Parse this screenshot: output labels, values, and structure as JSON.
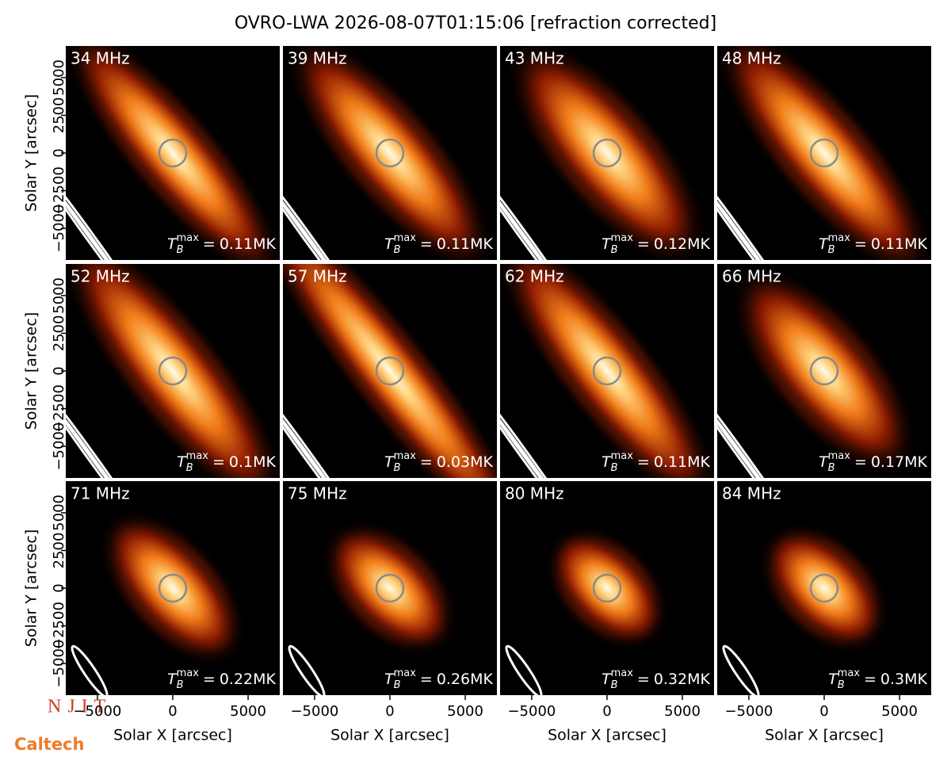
{
  "chart_data": {
    "type": "image-grid",
    "title": "OVRO-LWA 2026-08-07T01:15:06 [refraction corrected]",
    "xlabel": "Solar X [arcsec]",
    "ylabel": "Solar Y [arcsec]",
    "xlim": [
      -7100,
      7100
    ],
    "ylim": [
      -7100,
      7100
    ],
    "xticks": [
      {
        "value": -5000,
        "label": "−5000"
      },
      0,
      5000
    ],
    "yticks": [
      {
        "value": -5000,
        "label": "−5000"
      },
      {
        "value": -2500,
        "label": "−2500"
      },
      0,
      2500,
      5000
    ],
    "tb_symbol": {
      "base": "T",
      "sub": "B",
      "sup": "max",
      "eq": "="
    },
    "panels": [
      {
        "label": "34 MHz",
        "value": 0.11,
        "value_label": "0.11MK"
      },
      {
        "label": "39 MHz",
        "value": 0.11,
        "value_label": "0.11MK"
      },
      {
        "label": "43 MHz",
        "value": 0.12,
        "value_label": "0.12MK"
      },
      {
        "label": "48 MHz",
        "value": 0.11,
        "value_label": "0.11MK"
      },
      {
        "label": "52 MHz",
        "value": 0.1,
        "value_label": "0.1MK"
      },
      {
        "label": "57 MHz",
        "value": 0.03,
        "value_label": "0.03MK"
      },
      {
        "label": "62 MHz",
        "value": 0.11,
        "value_label": "0.11MK"
      },
      {
        "label": "66 MHz",
        "value": 0.17,
        "value_label": "0.17MK"
      },
      {
        "label": "71 MHz",
        "value": 0.22,
        "value_label": "0.22MK"
      },
      {
        "label": "75 MHz",
        "value": 0.26,
        "value_label": "0.26MK"
      },
      {
        "label": "80 MHz",
        "value": 0.32,
        "value_label": "0.32MK"
      },
      {
        "label": "84 MHz",
        "value": 0.3,
        "value_label": "0.3MK"
      }
    ],
    "logos": [
      "NJIT",
      "Caltech"
    ]
  }
}
